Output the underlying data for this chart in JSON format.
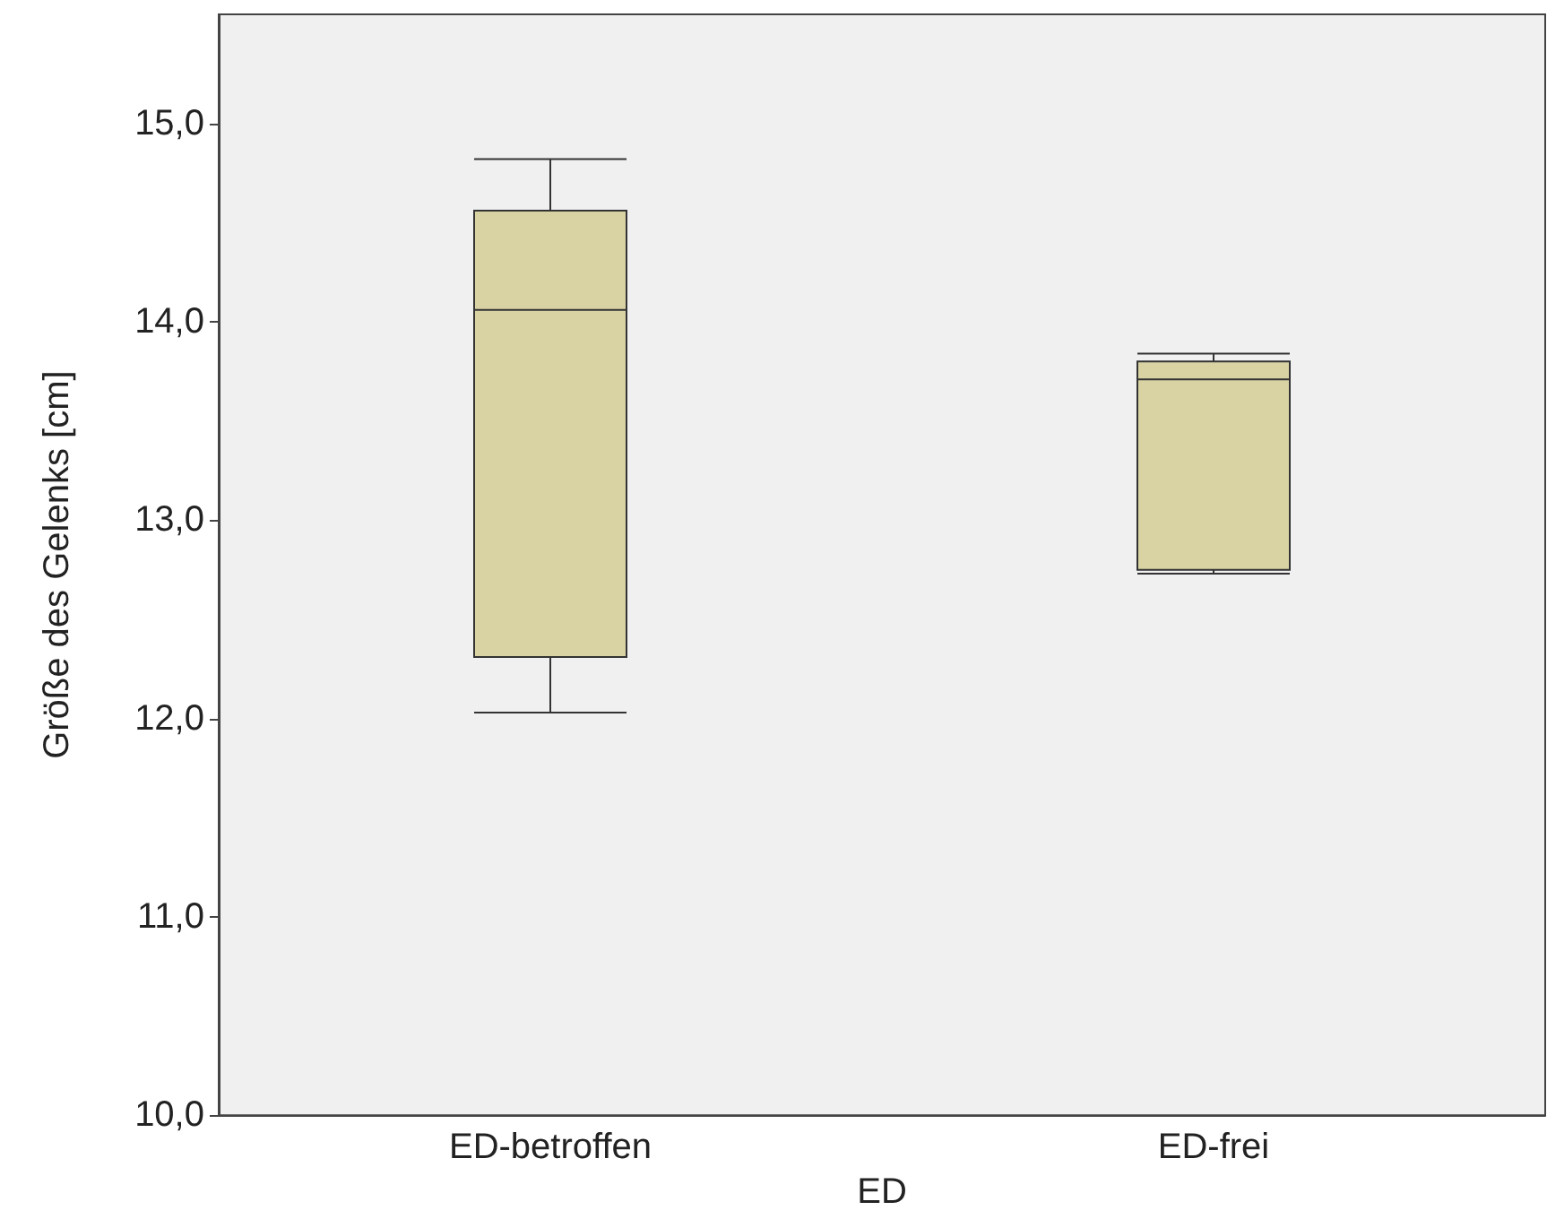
{
  "chart_data": {
    "type": "box",
    "categories": [
      "ED-betroffen",
      "ED-frei"
    ],
    "xlabel": "ED",
    "ylabel": "Größe des Gelenks [cm]",
    "color": "#d9d3a4",
    "boxes": [
      {
        "low": 12.03,
        "q1": 12.31,
        "median": 14.06,
        "q3": 14.56,
        "high": 14.82
      },
      {
        "low": 12.73,
        "q1": 12.75,
        "median": 13.71,
        "q3": 13.8,
        "high": 13.84
      }
    ],
    "ylim": [
      10,
      15.55
    ],
    "yticks": [
      {
        "value": 10,
        "label": "10,0"
      },
      {
        "value": 11,
        "label": "11,0"
      },
      {
        "value": 12,
        "label": "12,0"
      },
      {
        "value": 13,
        "label": "13,0"
      },
      {
        "value": 14,
        "label": "14,0"
      },
      {
        "value": 15,
        "label": "15,0"
      }
    ],
    "grid": false
  }
}
